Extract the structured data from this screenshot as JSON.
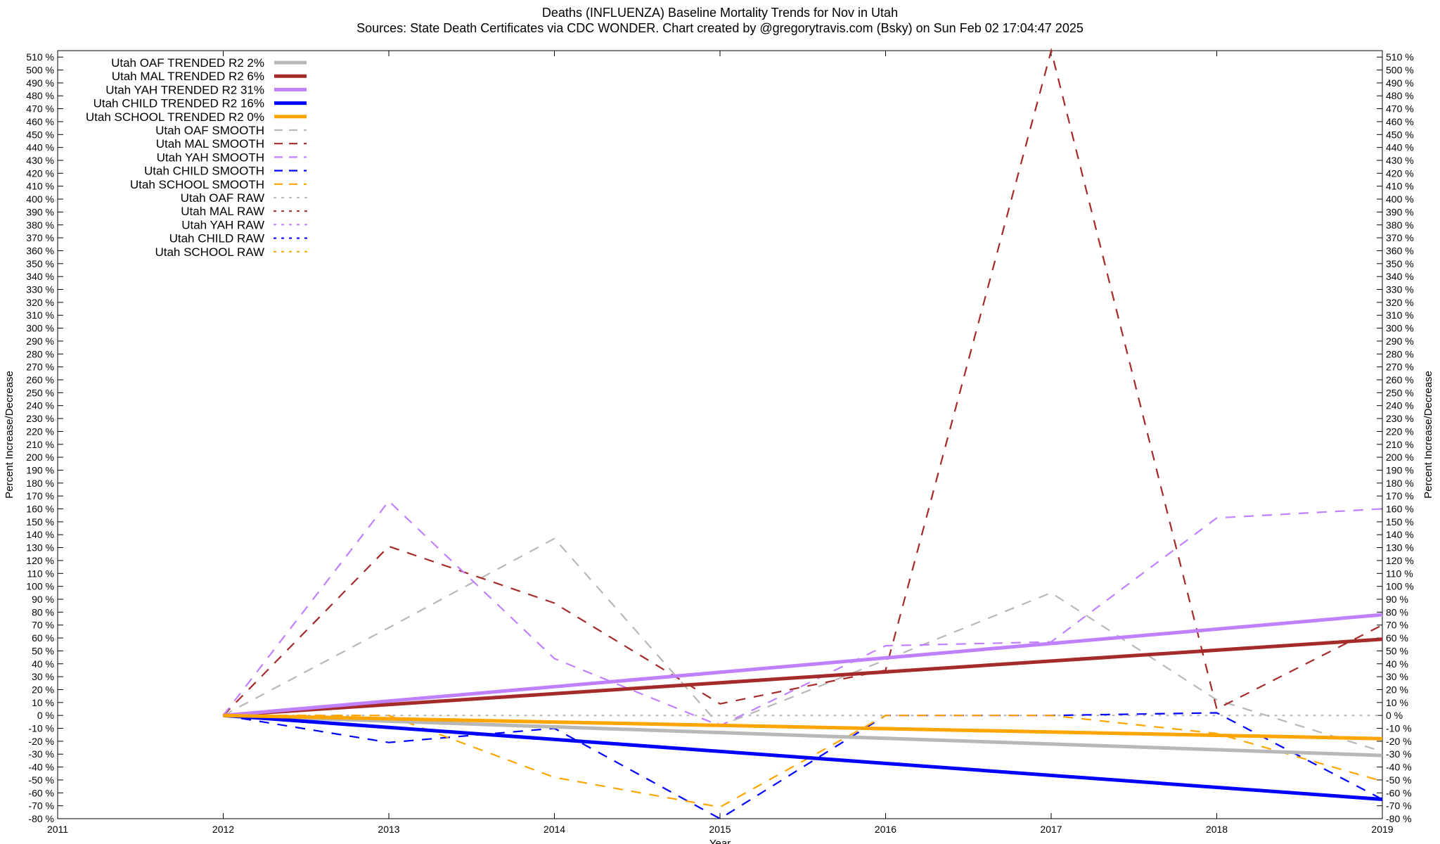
{
  "chart_data": {
    "type": "line",
    "title": "Deaths (INFLUENZA)  Baseline Mortality Trends for Nov in Utah",
    "subtitle": "Sources: State Death Certificates via CDC WONDER.              Chart created by @gregorytravis.com (Bsky) on Sun Feb 02 17:04:47 2025",
    "xlabel": "Year",
    "ylabel": "Percent Increase/Decrease",
    "y2label": "Percent Increase/Decrease",
    "xlim": [
      2011,
      2019
    ],
    "ylim": [
      -80,
      515
    ],
    "x_ticks": [
      2011,
      2012,
      2013,
      2014,
      2015,
      2016,
      2017,
      2018,
      2019
    ],
    "y_ticks_step": 10,
    "y_tick_suffix": " %",
    "legend_position": "top-left",
    "series": [
      {
        "name": "Utah OAF TRENDED R2",
        "r2": "2%",
        "style": "trend",
        "color": "#b8b8b8",
        "x": [
          2012,
          2019
        ],
        "values": [
          0,
          -31
        ]
      },
      {
        "name": "Utah MAL TRENDED R2",
        "r2": "6%",
        "style": "trend",
        "color": "#a52a2a",
        "x": [
          2012,
          2019
        ],
        "values": [
          0,
          59
        ]
      },
      {
        "name": "Utah YAH TRENDED R2",
        "r2": "31%",
        "style": "trend",
        "color": "#c080ff",
        "x": [
          2012,
          2019
        ],
        "values": [
          0,
          78
        ]
      },
      {
        "name": "Utah CHILD TRENDED R2",
        "r2": "16%",
        "style": "trend",
        "color": "#0000ff",
        "x": [
          2012,
          2019
        ],
        "values": [
          0,
          -65
        ]
      },
      {
        "name": "Utah SCHOOL TRENDED R2",
        "r2": "0%",
        "style": "trend",
        "color": "#ffa500",
        "x": [
          2012,
          2019
        ],
        "values": [
          0,
          -18
        ]
      },
      {
        "name": "Utah OAF SMOOTH",
        "style": "smooth",
        "color": "#b8b8b8",
        "x": [
          2012,
          2013,
          2014,
          2015,
          2016,
          2017,
          2018,
          2019
        ],
        "values": [
          0,
          68,
          137,
          -8,
          43,
          95,
          12,
          -28
        ]
      },
      {
        "name": "Utah MAL SMOOTH",
        "style": "smooth",
        "color": "#a52a2a",
        "x": [
          2012,
          2013,
          2014,
          2015,
          2016,
          2017,
          2018,
          2019
        ],
        "values": [
          0,
          131,
          87,
          9,
          35,
          515,
          5,
          70
        ]
      },
      {
        "name": "Utah YAH SMOOTH",
        "style": "smooth",
        "color": "#c080ff",
        "x": [
          2012,
          2013,
          2014,
          2015,
          2016,
          2017,
          2018,
          2019
        ],
        "values": [
          0,
          166,
          44,
          -8,
          54,
          57,
          153,
          160
        ]
      },
      {
        "name": "Utah CHILD SMOOTH",
        "style": "smooth",
        "color": "#0000ff",
        "x": [
          2012,
          2013,
          2014,
          2015,
          2016,
          2017,
          2018,
          2019
        ],
        "values": [
          0,
          -21,
          -10,
          -80,
          0,
          0,
          2,
          -65
        ]
      },
      {
        "name": "Utah SCHOOL SMOOTH",
        "style": "smooth",
        "color": "#ffa500",
        "x": [
          2012,
          2013,
          2014,
          2015,
          2016,
          2017,
          2018,
          2019
        ],
        "values": [
          0,
          0,
          -48,
          -71,
          0,
          0,
          -14,
          -51
        ]
      },
      {
        "name": "Utah OAF RAW",
        "style": "raw",
        "color": "#b8b8b8",
        "x": [
          2012,
          2019
        ],
        "values": [
          0,
          0
        ]
      },
      {
        "name": "Utah MAL RAW",
        "style": "raw",
        "color": "#a52a2a",
        "x": [],
        "values": []
      },
      {
        "name": "Utah YAH RAW",
        "style": "raw",
        "color": "#c080ff",
        "x": [],
        "values": []
      },
      {
        "name": "Utah CHILD RAW",
        "style": "raw",
        "color": "#0000ff",
        "x": [],
        "values": []
      },
      {
        "name": "Utah SCHOOL RAW",
        "style": "raw",
        "color": "#ffa500",
        "x": [],
        "values": []
      }
    ]
  }
}
